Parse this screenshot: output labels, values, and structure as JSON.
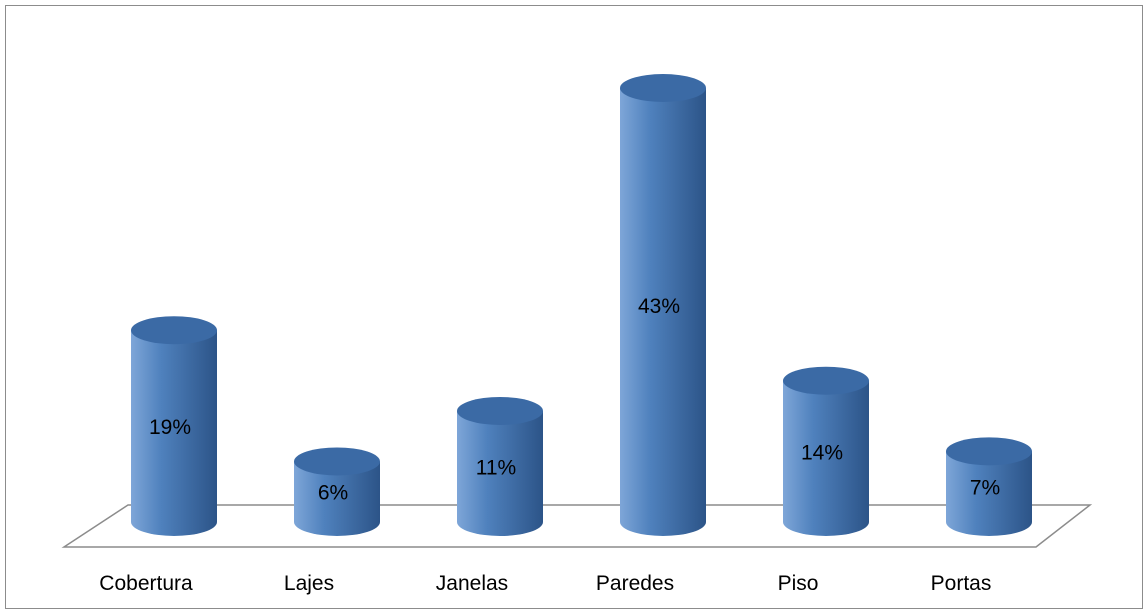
{
  "chart_data": {
    "type": "bar",
    "style": "3d-cylinder",
    "categories": [
      "Cobertura",
      "Lajes",
      "Janelas",
      "Paredes",
      "Piso",
      "Portas"
    ],
    "values": [
      19,
      6,
      11,
      43,
      14,
      7
    ],
    "data_labels": [
      "19%",
      "6%",
      "11%",
      "43%",
      "14%",
      "7%"
    ],
    "unit": "%",
    "title": "",
    "xlabel": "",
    "ylabel": "",
    "ylim": [
      0,
      43
    ],
    "grid": false,
    "legend": "none",
    "colors": {
      "bar_fill": "#4f81bd",
      "bar_dark": "#2c5488",
      "bar_light": "#7ea6d8",
      "top_ellipse": "#3b6aa5",
      "floor_stroke": "#8c8c8c",
      "frame": "#8c8c8c"
    }
  }
}
